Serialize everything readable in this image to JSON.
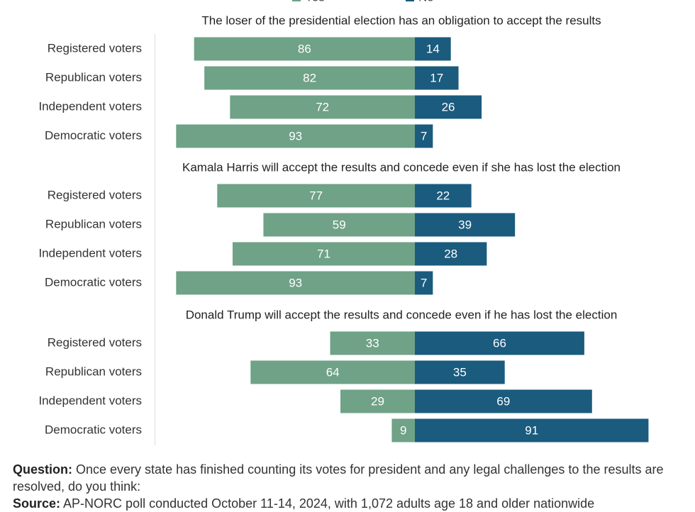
{
  "chart_data": [
    {
      "type": "bar",
      "title": "The loser of the presidential election has an obligation to accept the results",
      "categories": [
        "Registered voters",
        "Republican voters",
        "Independent voters",
        "Democratic voters"
      ],
      "series": [
        {
          "name": "Yes",
          "color": "#6fa287",
          "values": [
            86,
            82,
            72,
            93
          ]
        },
        {
          "name": "No",
          "color": "#1a5b7e",
          "values": [
            14,
            17,
            26,
            7
          ]
        }
      ],
      "xlim": [
        -100,
        100
      ]
    },
    {
      "type": "bar",
      "title": "Kamala Harris will accept the results and concede even if she has lost the election",
      "categories": [
        "Registered voters",
        "Republican voters",
        "Independent voters",
        "Democratic voters"
      ],
      "series": [
        {
          "name": "Yes",
          "color": "#6fa287",
          "values": [
            77,
            59,
            71,
            93
          ]
        },
        {
          "name": "No",
          "color": "#1a5b7e",
          "values": [
            22,
            39,
            28,
            7
          ]
        }
      ],
      "xlim": [
        -100,
        100
      ]
    },
    {
      "type": "bar",
      "title": "Donald Trump will accept the results and concede even if he has lost the election",
      "categories": [
        "Registered voters",
        "Republican voters",
        "Independent voters",
        "Democratic voters"
      ],
      "series": [
        {
          "name": "Yes",
          "color": "#6fa287",
          "values": [
            33,
            64,
            29,
            9
          ]
        },
        {
          "name": "No",
          "color": "#1a5b7e",
          "values": [
            66,
            35,
            69,
            91
          ]
        }
      ],
      "xlim": [
        -100,
        100
      ]
    }
  ],
  "footer": {
    "question_label": "Question:",
    "question": "Once every state has finished counting its votes for president and any legal challenges to the results are resolved, do you think:",
    "source_label": "Source:",
    "source": "AP-NORC poll conducted October 11-14, 2024, with 1,072 adults age 18 and older nationwide"
  }
}
